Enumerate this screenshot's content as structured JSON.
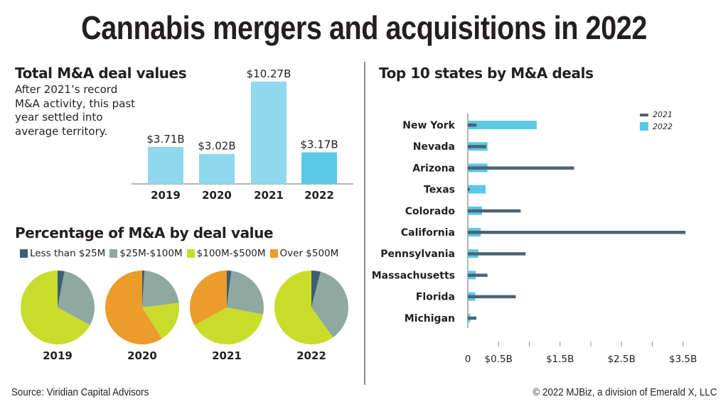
{
  "title": "Cannabis mergers and acquisitions in 2022",
  "footer": {
    "source": "Source: Viridian Capital Advisors",
    "copyright": "© 2022 MJBiz, a division of Emerald X, LLC"
  },
  "colors": {
    "bar_light": "#8fd8ee",
    "bar_highlight": "#5bc8e6",
    "lt25": "#3f5e75",
    "m25_100": "#8fa8a0",
    "m100_500": "#c9dc2c",
    "over500": "#eb9c2a",
    "series_2021": "#4a6474",
    "series_2022": "#5bc8e6"
  },
  "chart_data": [
    {
      "type": "bar",
      "title": "Total M&A deal values",
      "subtitle": "After 2021’s record M&A activity, this past year settled into average territory.",
      "categories": [
        "2019",
        "2020",
        "2021",
        "2022"
      ],
      "values": [
        3.71,
        3.02,
        10.27,
        3.17
      ],
      "value_labels": [
        "$3.71B",
        "$3.02B",
        "$10.27B",
        "$3.17B"
      ],
      "units": "USD billions",
      "highlight": "2022",
      "ylim": [
        0,
        10.27
      ]
    },
    {
      "type": "pie",
      "title": "Percentage of M&A by deal value",
      "legend": [
        "Less than $25M",
        "$25M-$100M",
        "$100M-$500M",
        "Over $500M"
      ],
      "pies": [
        {
          "label": "2019",
          "values": [
            3,
            30,
            67,
            0
          ]
        },
        {
          "label": "2020",
          "values": [
            1,
            22,
            18,
            59
          ]
        },
        {
          "label": "2021",
          "values": [
            2,
            26,
            39,
            33
          ]
        },
        {
          "label": "2022",
          "values": [
            4,
            36,
            60,
            0
          ]
        }
      ]
    },
    {
      "type": "bar",
      "orientation": "horizontal",
      "title": "Top 10 states by M&A deals",
      "categories": [
        "New York",
        "Nevada",
        "Arizona",
        "Texas",
        "Colorado",
        "California",
        "Pennsylvania",
        "Massachusetts",
        "Florida",
        "Michigan"
      ],
      "series": [
        {
          "name": "2021",
          "values": [
            0.14,
            0.3,
            1.73,
            0.03,
            0.86,
            3.54,
            0.94,
            0.32,
            0.78,
            0.14
          ]
        },
        {
          "name": "2022",
          "values": [
            1.12,
            0.32,
            0.32,
            0.29,
            0.23,
            0.21,
            0.17,
            0.13,
            0.12,
            0.04
          ]
        }
      ],
      "xlim": [
        0,
        3.5
      ],
      "xticks": [
        0,
        0.5,
        1.0,
        1.5,
        2.0,
        2.5,
        3.0,
        3.5
      ],
      "xtick_labels": [
        "0",
        "$0.5B",
        "",
        "$1.5B",
        "",
        "$2.5B",
        "",
        "$3.5B"
      ],
      "legend_position": "top-right"
    }
  ]
}
